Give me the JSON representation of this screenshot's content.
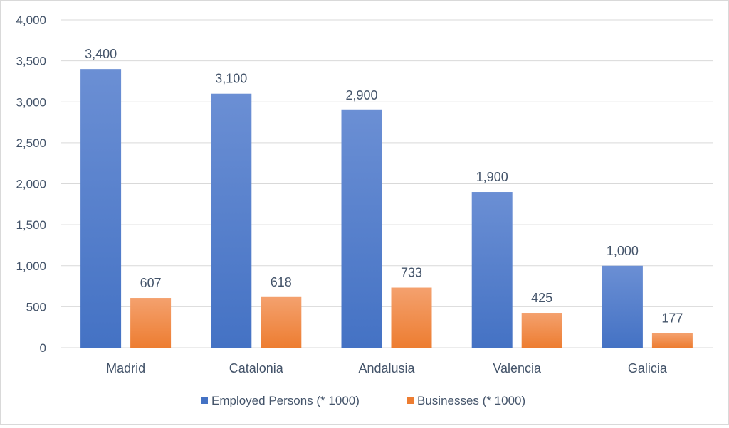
{
  "chart_data": {
    "type": "bar",
    "categories": [
      "Madrid",
      "Catalonia",
      "Andalusia",
      "Valencia",
      "Galicia"
    ],
    "series": [
      {
        "name": "Employed Persons (* 1000)",
        "values": [
          3400,
          3100,
          2900,
          1900,
          1000
        ],
        "color": "#4472c4",
        "color_light": "#6b8fd4"
      },
      {
        "name": "Businesses (* 1000)",
        "values": [
          607,
          618,
          733,
          425,
          177
        ],
        "color": "#ed7d31",
        "color_light": "#f4a16e"
      }
    ],
    "data_labels": [
      [
        "3,400",
        "3,100",
        "2,900",
        "1,900",
        "1,000"
      ],
      [
        "607",
        "618",
        "733",
        "425",
        "177"
      ]
    ],
    "y_ticks": [
      0,
      500,
      1000,
      1500,
      2000,
      2500,
      3000,
      3500,
      4000
    ],
    "y_tick_labels": [
      "0",
      "500",
      "1,000",
      "1,500",
      "2,000",
      "2,500",
      "3,000",
      "3,500",
      "4,000"
    ],
    "ylim": [
      0,
      4000
    ],
    "grid": true,
    "legend": "bottom",
    "title": "",
    "xlabel": "",
    "ylabel": ""
  }
}
